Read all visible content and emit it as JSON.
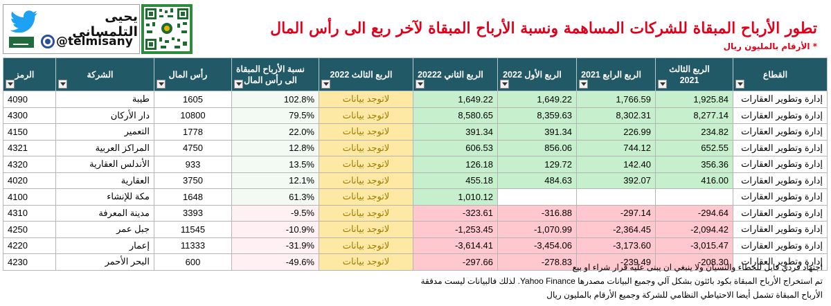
{
  "brand": {
    "name": "يحيى التلمساني",
    "handle": "@telmisany"
  },
  "header": {
    "title": "تطور الأرباح المبقاة للشركات المساهمة ونسبة الأرباح المبقاة لآخر ربع الى رأس المال",
    "subtitle": "* الأرقام بالمليون ريال"
  },
  "table": {
    "headers": {
      "code": "الرمز",
      "company": "الشركة",
      "capital": "رأس المال",
      "ratio": "نسبة الأرباح المبقاة الى رأس المال",
      "q3_2022": "الربع الثالث 2022",
      "q2_2022": "الربع الثاني 20222",
      "q1_2022": "الربع الأول 2022",
      "q4_2021": "الربع الرابع 2021",
      "q3_2021": "الربع الثالث 2021",
      "sector": "القطاع"
    },
    "rows": [
      {
        "code": "4090",
        "company": "طيبة",
        "capital": "1605",
        "ratio": "102.8%",
        "q3_2022": "لاتوجد بيانات",
        "q2_2022": "1,649.22",
        "q1_2022": "1,649.22",
        "q4_2021": "1,766.59",
        "q3_2021": "1,925.84",
        "sector": "إدارة وتطوير العقارات"
      },
      {
        "code": "4300",
        "company": "دار الأركان",
        "capital": "10800",
        "ratio": "79.5%",
        "q3_2022": "لاتوجد بيانات",
        "q2_2022": "8,580.65",
        "q1_2022": "8,359.63",
        "q4_2021": "8,302.31",
        "q3_2021": "8,277.14",
        "sector": "إدارة وتطوير العقارات"
      },
      {
        "code": "4150",
        "company": "التعمير",
        "capital": "1778",
        "ratio": "22.0%",
        "q3_2022": "لاتوجد بيانات",
        "q2_2022": "391.34",
        "q1_2022": "391.34",
        "q4_2021": "226.99",
        "q3_2021": "234.82",
        "sector": "إدارة وتطوير العقارات"
      },
      {
        "code": "4321",
        "company": "المراكز العربية",
        "capital": "4750",
        "ratio": "12.8%",
        "q3_2022": "لاتوجد بيانات",
        "q2_2022": "606.53",
        "q1_2022": "856.06",
        "q4_2021": "744.12",
        "q3_2021": "652.55",
        "sector": "إدارة وتطوير العقارات"
      },
      {
        "code": "4320",
        "company": "الأندلس العقارية",
        "capital": "933",
        "ratio": "13.5%",
        "q3_2022": "لاتوجد بيانات",
        "q2_2022": "126.18",
        "q1_2022": "129.72",
        "q4_2021": "142.40",
        "q3_2021": "356.36",
        "sector": "إدارة وتطوير العقارات"
      },
      {
        "code": "4020",
        "company": "العقارية",
        "capital": "3750",
        "ratio": "12.1%",
        "q3_2022": "لاتوجد بيانات",
        "q2_2022": "455.18",
        "q1_2022": "484.63",
        "q4_2021": "392.07",
        "q3_2021": "416.00",
        "sector": "إدارة وتطوير العقارات"
      },
      {
        "code": "4100",
        "company": "مكة للإنشاء",
        "capital": "1648",
        "ratio": "61.3%",
        "q3_2022": "لاتوجد بيانات",
        "q2_2022": "1,010.12",
        "q1_2022": "",
        "q4_2021": "",
        "q3_2021": "",
        "sector": "إدارة وتطوير العقارات"
      },
      {
        "code": "4310",
        "company": "مدينة المعرفة",
        "capital": "3393",
        "ratio": "-9.5%",
        "q3_2022": "لاتوجد بيانات",
        "q2_2022": "-323.61",
        "q1_2022": "-316.88",
        "q4_2021": "-297.14",
        "q3_2021": "-294.64",
        "sector": "إدارة وتطوير العقارات"
      },
      {
        "code": "4250",
        "company": "جبل عمر",
        "capital": "11545",
        "ratio": "-10.9%",
        "q3_2022": "لاتوجد بيانات",
        "q2_2022": "-1,253.45",
        "q1_2022": "-1,070.99",
        "q4_2021": "-2,364.45",
        "q3_2021": "-2,094.42",
        "sector": "إدارة وتطوير العقارات"
      },
      {
        "code": "4220",
        "company": "إعمار",
        "capital": "11333",
        "ratio": "-31.9%",
        "q3_2022": "لاتوجد بيانات",
        "q2_2022": "-3,614.41",
        "q1_2022": "-3,454.06",
        "q4_2021": "-3,173.60",
        "q3_2021": "-3,015.47",
        "sector": "إدارة وتطوير العقارات"
      },
      {
        "code": "4230",
        "company": "البحر الأحمر",
        "capital": "600",
        "ratio": "-49.6%",
        "q3_2022": "لاتوجد بيانات",
        "q2_2022": "-297.66",
        "q1_2022": "-278.83",
        "q4_2021": "-239.49",
        "q3_2021": "-208.30",
        "sector": "إدارة وتطوير العقارات"
      }
    ]
  },
  "notes": [
    "اجتهاد فردي قابل للخطاء والنسيان ولا ينبغي ان يبنى عليه قرار شراء او بيع",
    "تم استخراج الأرباح المبقاة بكود بائثون بشكل آلي وجميع البيانات مصدرها Yahoo Finance. لذلك فالبيانات ليست مدققة",
    "الأرباح المبقاة تشمل أيضا الاحتياطي النظامي للشركة وجميع الأرقام بالمليون ريال"
  ],
  "colors": {
    "header_bg": "#215967",
    "title": "#e0001b",
    "positive_fill": "#c6efce",
    "negative_fill": "#ffc7ce",
    "no_data_fill": "#fde9a3"
  }
}
